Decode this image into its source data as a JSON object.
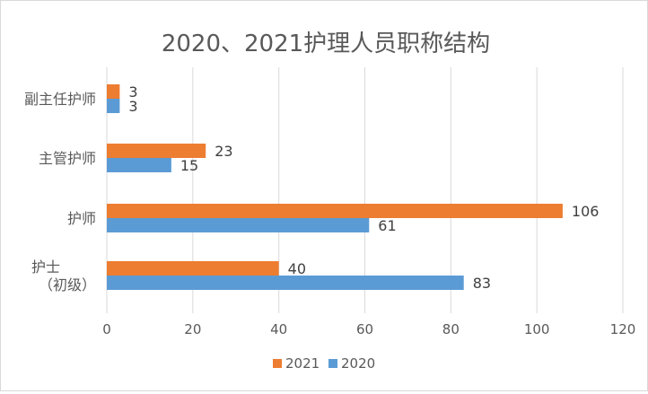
{
  "chart_data": {
    "type": "bar",
    "orientation": "horizontal",
    "title": "2020、2021护理人员职称结构",
    "categories": [
      "副主任护师",
      "主管护师",
      "护师",
      "护士\n（初级）"
    ],
    "series": [
      {
        "name": "2021",
        "color": "#ed7d31",
        "values": [
          3,
          23,
          106,
          40
        ]
      },
      {
        "name": "2020",
        "color": "#5b9bd5",
        "values": [
          3,
          15,
          61,
          83
        ]
      }
    ],
    "xlim": [
      0,
      120
    ],
    "xticks": [
      0,
      20,
      40,
      60,
      80,
      100,
      120
    ],
    "grid": true,
    "data_labels": true,
    "legend_position": "bottom"
  }
}
